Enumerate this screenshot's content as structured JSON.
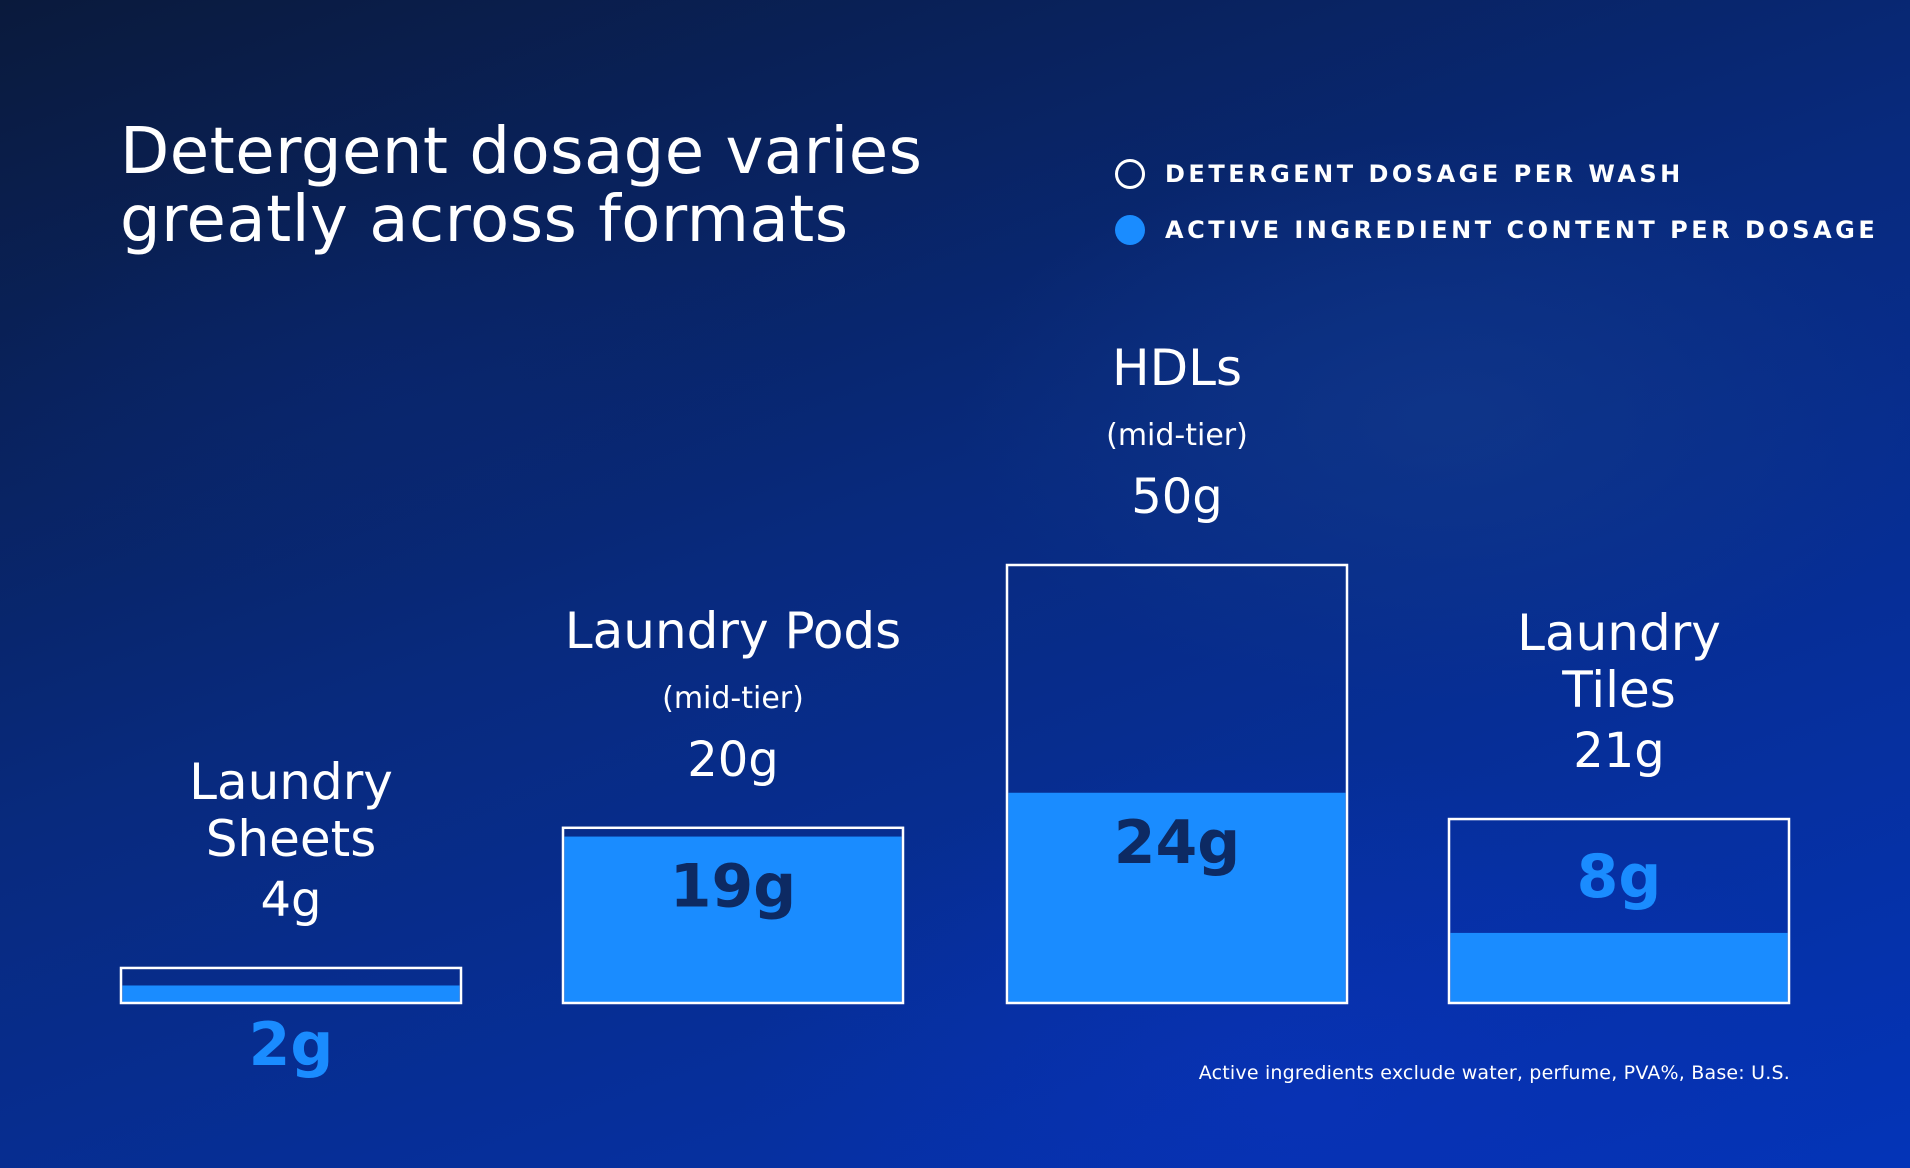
{
  "title_line1": "Detergent dosage varies",
  "title_line2": "greatly across formats",
  "legend": [
    {
      "label": "DETERGENT DOSAGE PER WASH",
      "style": "outline"
    },
    {
      "label": "ACTIVE INGREDIENT CONTENT PER DOSAGE",
      "style": "filled"
    }
  ],
  "footnote": "Active ingredients exclude water, perfume, PVA%, Base: U.S.",
  "colors": {
    "accent": "#1a8cff",
    "box_outline": "#ffffff",
    "dark_text": "#0d2a63"
  },
  "chart_data": {
    "type": "bar",
    "title": "Detergent dosage varies greatly across formats",
    "unit": "g",
    "categories": [
      {
        "name_lines": [
          "Laundry",
          "Sheets"
        ],
        "subtitle": ""
      },
      {
        "name_lines": [
          "Laundry Pods"
        ],
        "subtitle": "(mid-tier)"
      },
      {
        "name_lines": [
          "HDLs"
        ],
        "subtitle": "(mid-tier)"
      },
      {
        "name_lines": [
          "Laundry",
          "Tiles"
        ],
        "subtitle": ""
      }
    ],
    "series": [
      {
        "name": "DETERGENT DOSAGE PER WASH",
        "values": [
          4,
          20,
          50,
          21
        ],
        "labels": [
          "4g",
          "20g",
          "50g",
          "21g"
        ]
      },
      {
        "name": "ACTIVE INGREDIENT CONTENT PER DOSAGE",
        "values": [
          2,
          19,
          24,
          8
        ],
        "labels": [
          "2g",
          "19g",
          "24g",
          "8g"
        ]
      }
    ]
  }
}
